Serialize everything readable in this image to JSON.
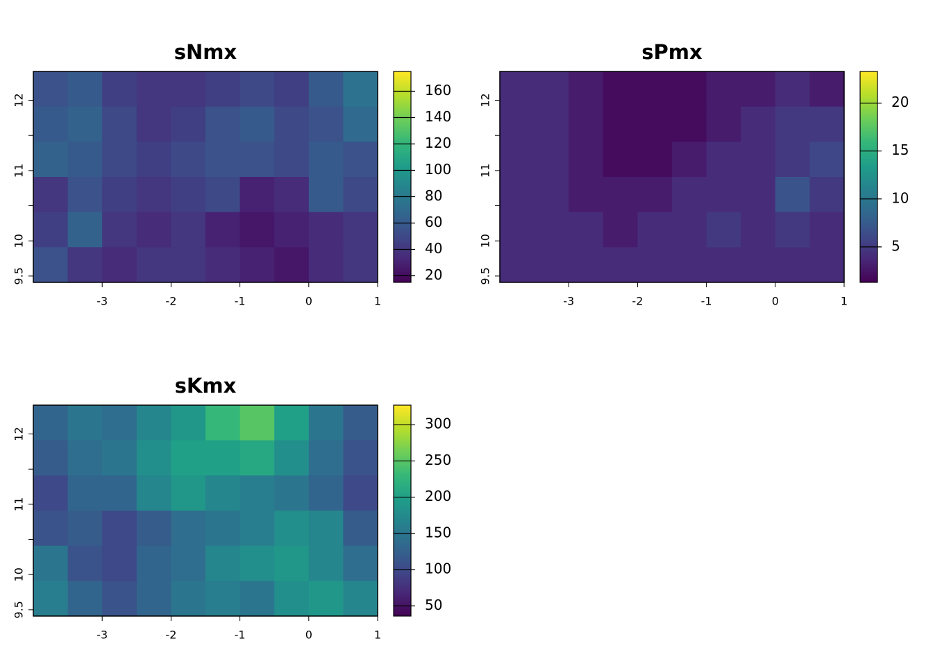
{
  "chart_data": [
    {
      "type": "heatmap",
      "title": "sNmx",
      "xlim": [
        -4,
        1
      ],
      "ylim": [
        9.41,
        12.41
      ],
      "xticks": [
        -3,
        -2,
        -1,
        0,
        1
      ],
      "yticks": [
        9.5,
        10,
        {
          "value": 10.5,
          "label": null
        },
        11,
        {
          "value": 11.5,
          "label": null
        },
        12
      ],
      "zlim": [
        15,
        175
      ],
      "zticks": [
        20,
        40,
        60,
        80,
        100,
        120,
        140,
        160
      ],
      "colors": [
        "#440154",
        "#482878",
        "#3e4a89",
        "#31688e",
        "#26828e",
        "#1f9e89",
        "#35b779",
        "#6ece58",
        "#b5de2b",
        "#fde725"
      ],
      "values": [
        [
          55,
          60,
          45,
          40,
          40,
          45,
          50,
          45,
          60,
          75
        ],
        [
          60,
          65,
          50,
          40,
          45,
          55,
          60,
          50,
          55,
          70
        ],
        [
          65,
          60,
          50,
          45,
          50,
          55,
          55,
          50,
          60,
          55
        ],
        [
          40,
          55,
          45,
          40,
          45,
          50,
          30,
          35,
          60,
          50
        ],
        [
          45,
          65,
          40,
          35,
          40,
          30,
          25,
          30,
          35,
          40
        ],
        [
          55,
          40,
          35,
          40,
          40,
          35,
          30,
          25,
          35,
          40
        ]
      ]
    },
    {
      "type": "heatmap",
      "title": "sPmx",
      "xlim": [
        -4,
        1
      ],
      "ylim": [
        9.41,
        12.41
      ],
      "xticks": [
        -3,
        -2,
        -1,
        0,
        1
      ],
      "yticks": [
        9.5,
        10,
        {
          "value": 10.5,
          "label": null
        },
        11,
        {
          "value": 11.5,
          "label": null
        },
        12
      ],
      "zlim": [
        1.3,
        23.3
      ],
      "zticks": [
        5,
        10,
        15,
        20
      ],
      "colors": [
        "#440154",
        "#482878",
        "#3e4a89",
        "#31688e",
        "#26828e",
        "#1f9e89",
        "#35b779",
        "#6ece58",
        "#b5de2b",
        "#fde725"
      ],
      "values": [
        [
          4,
          4,
          3,
          2,
          2,
          2,
          3,
          3,
          4,
          3
        ],
        [
          4,
          4,
          3,
          2,
          2,
          2,
          3,
          4,
          5,
          5
        ],
        [
          4,
          4,
          3,
          2,
          2,
          3,
          4,
          4,
          5,
          6
        ],
        [
          4,
          4,
          3,
          3,
          3,
          4,
          4,
          4,
          7,
          5
        ],
        [
          4,
          4,
          4,
          3,
          4,
          4,
          5,
          4,
          5,
          4
        ],
        [
          4,
          4,
          4,
          4,
          4,
          4,
          4,
          4,
          4,
          4
        ]
      ]
    },
    {
      "type": "heatmap",
      "title": "sKmx",
      "xlim": [
        -4,
        1
      ],
      "ylim": [
        9.41,
        12.41
      ],
      "xticks": [
        -3,
        -2,
        -1,
        0,
        1
      ],
      "yticks": [
        9.5,
        10,
        {
          "value": 10.5,
          "label": null
        },
        11,
        {
          "value": 11.5,
          "label": null
        },
        12
      ],
      "zlim": [
        36,
        327
      ],
      "zticks": [
        50,
        100,
        150,
        200,
        250,
        300
      ],
      "colors": [
        "#440154",
        "#482878",
        "#3e4a89",
        "#31688e",
        "#26828e",
        "#1f9e89",
        "#35b779",
        "#6ece58",
        "#b5de2b",
        "#fde725"
      ],
      "values": [
        [
          130,
          150,
          140,
          170,
          190,
          230,
          250,
          200,
          150,
          120
        ],
        [
          120,
          140,
          150,
          180,
          200,
          200,
          210,
          180,
          140,
          110
        ],
        [
          100,
          130,
          130,
          170,
          190,
          170,
          160,
          150,
          130,
          100
        ],
        [
          110,
          120,
          100,
          120,
          140,
          150,
          160,
          180,
          170,
          120
        ],
        [
          150,
          110,
          100,
          130,
          140,
          170,
          180,
          190,
          170,
          140
        ],
        [
          160,
          130,
          110,
          130,
          150,
          160,
          150,
          180,
          190,
          170
        ]
      ]
    }
  ]
}
